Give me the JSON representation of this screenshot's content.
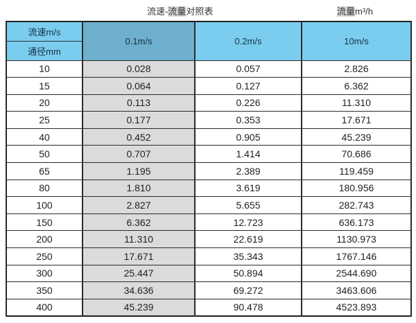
{
  "header": {
    "title_left": {
      "prefix": "流速-",
      "highlight": "流量",
      "suffix": "对照表"
    },
    "title_right": {
      "highlight": "流量",
      "suffix": "m³/h"
    }
  },
  "colors": {
    "header_blue": "#7bcdf0",
    "header_blue_dark": "#6eafcd",
    "column_gray": "#dbdbdb",
    "border": "#2b2b2b",
    "highlight_gray": "#d9d9d9"
  },
  "chart_data": {
    "type": "table",
    "title": "流速-流量对照表",
    "right_label": "流量m³/h",
    "corner_top": "流速m/s",
    "corner_bottom": "通径mm",
    "columns": [
      "0.1m/s",
      "0.2m/s",
      "10m/s"
    ],
    "rows": [
      {
        "diameter": "10",
        "values": [
          "0.028",
          "0.057",
          "2.826"
        ]
      },
      {
        "diameter": "15",
        "values": [
          "0.064",
          "0.127",
          "6.362"
        ]
      },
      {
        "diameter": "20",
        "values": [
          "0.113",
          "0.226",
          "11.310"
        ]
      },
      {
        "diameter": "25",
        "values": [
          "0.177",
          "0.353",
          "17.671"
        ]
      },
      {
        "diameter": "40",
        "values": [
          "0.452",
          "0.905",
          "45.239"
        ]
      },
      {
        "diameter": "50",
        "values": [
          "0.707",
          "1.414",
          "70.686"
        ]
      },
      {
        "diameter": "65",
        "values": [
          "1.195",
          "2.389",
          "119.459"
        ]
      },
      {
        "diameter": "80",
        "values": [
          "1.810",
          "3.619",
          "180.956"
        ]
      },
      {
        "diameter": "100",
        "values": [
          "2.827",
          "5.655",
          "282.743"
        ]
      },
      {
        "diameter": "150",
        "values": [
          "6.362",
          "12.723",
          "636.173"
        ]
      },
      {
        "diameter": "200",
        "values": [
          "11.310",
          "22.619",
          "1130.973"
        ]
      },
      {
        "diameter": "250",
        "values": [
          "17.671",
          "35.343",
          "1767.146"
        ]
      },
      {
        "diameter": "300",
        "values": [
          "25.447",
          "50.894",
          "2544.690"
        ]
      },
      {
        "diameter": "350",
        "values": [
          "34.636",
          "69.272",
          "3463.606"
        ]
      },
      {
        "diameter": "400",
        "values": [
          "45.239",
          "90.478",
          "4523.893"
        ]
      }
    ]
  }
}
